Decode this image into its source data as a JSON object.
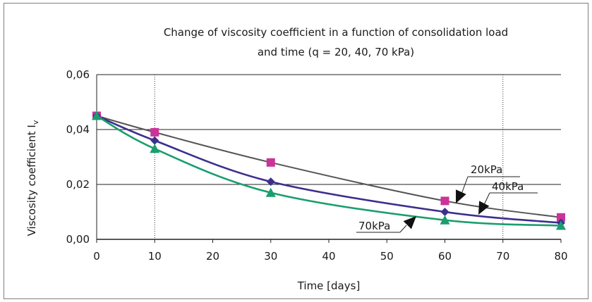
{
  "chart_data": {
    "type": "line",
    "title_line1": "Change of viscosity coefficient in a function of consolidation load",
    "title_line2": "and time (q = 20, 40, 70 kPa)",
    "xlabel": "Time [days]",
    "ylabel": "Viscosity coefficient I",
    "ylabel_subscript": "v",
    "xlim": [
      0,
      80
    ],
    "ylim": [
      0,
      0.06
    ],
    "x_ticks": [
      "0",
      "10",
      "20",
      "30",
      "40",
      "50",
      "60",
      "70",
      "80"
    ],
    "x_tick_values": [
      0,
      10,
      20,
      30,
      40,
      50,
      60,
      70,
      80
    ],
    "y_ticks": [
      "0,00",
      "0,02",
      "0,04",
      "0,06"
    ],
    "y_tick_values": [
      0,
      0.02,
      0.04,
      0.06
    ],
    "grid": "horizontal",
    "reference_lines_x": [
      10,
      70
    ],
    "series": [
      {
        "name": "20kPa",
        "marker": "square",
        "color": "#cc3399",
        "line_color": "#555555",
        "x": [
          0,
          10,
          30,
          60,
          80
        ],
        "y": [
          0.045,
          0.039,
          0.028,
          0.014,
          0.008
        ]
      },
      {
        "name": "40kPa",
        "marker": "diamond",
        "color": "#3b2f8f",
        "line_color": "#3b2f8f",
        "x": [
          0,
          10,
          30,
          60,
          80
        ],
        "y": [
          0.045,
          0.036,
          0.021,
          0.01,
          0.006
        ]
      },
      {
        "name": "70kPa",
        "marker": "triangle",
        "color": "#1a9e6e",
        "line_color": "#1a9e6e",
        "x": [
          0,
          10,
          30,
          60,
          80
        ],
        "y": [
          0.045,
          0.033,
          0.017,
          0.007,
          0.005
        ]
      }
    ]
  }
}
